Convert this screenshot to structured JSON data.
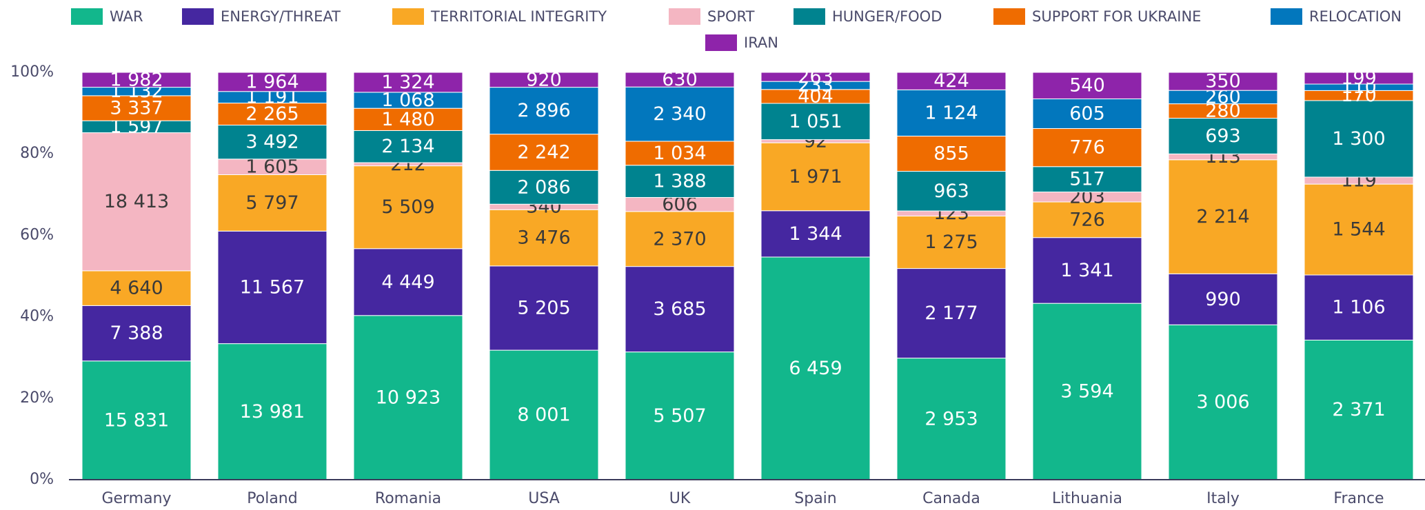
{
  "chart_data": {
    "type": "bar",
    "stacking": "percent",
    "categories": [
      "Germany",
      "Poland",
      "Romania",
      "USA",
      "UK",
      "Spain",
      "Canada",
      "Lithuania",
      "Italy",
      "France"
    ],
    "ylim": [
      0,
      100
    ],
    "yticks": [
      {
        "value": 0,
        "label": "0%"
      },
      {
        "value": 20,
        "label": "20%"
      },
      {
        "value": 40,
        "label": "40%"
      },
      {
        "value": 60,
        "label": "60%"
      },
      {
        "value": 80,
        "label": "80%"
      },
      {
        "value": 100,
        "label": "100%"
      }
    ],
    "series": [
      {
        "name": "WAR",
        "color": "#12b78c",
        "values": [
          15831,
          13981,
          10923,
          8001,
          5507,
          6459,
          2953,
          3594,
          3006,
          2371
        ],
        "value_labels": [
          "15 831",
          "13 981",
          "10 923",
          "8 001",
          "5 507",
          "6 459",
          "2 953",
          "3 594",
          "3 006",
          "2 371"
        ]
      },
      {
        "name": "ENERGY/THREAT",
        "color": "#4527a0",
        "values": [
          7388,
          11567,
          4449,
          5205,
          3685,
          1344,
          2177,
          1341,
          990,
          1106
        ],
        "value_labels": [
          "7 388",
          "11 567",
          "4 449",
          "5 205",
          "3 685",
          "1 344",
          "2 177",
          "1 341",
          "990",
          "1 106"
        ]
      },
      {
        "name": "TERRITORIAL INTEGRITY",
        "color": "#f9a825",
        "values": [
          4640,
          5797,
          5509,
          3476,
          2370,
          1971,
          1275,
          726,
          2214,
          1544
        ],
        "value_labels": [
          "4 640",
          "5 797",
          "5 509",
          "3 476",
          "2 370",
          "1 971",
          "1 275",
          "726",
          "2 214",
          "1 544"
        ]
      },
      {
        "name": "SPORT",
        "color": "#f4b6c2",
        "values": [
          18413,
          1605,
          212,
          340,
          606,
          92,
          123,
          203,
          113,
          119
        ],
        "value_labels": [
          "18 413",
          "1 605",
          "212",
          "340",
          "606",
          "92",
          "123",
          "203",
          "113",
          "119"
        ]
      },
      {
        "name": "HUNGER/FOOD",
        "color": "#00838f",
        "values": [
          1597,
          3492,
          2134,
          2086,
          1388,
          1051,
          963,
          517,
          693,
          1300
        ],
        "value_labels": [
          "1 597",
          "3 492",
          "2 134",
          "2 086",
          "1 388",
          "1 051",
          "963",
          "517",
          "693",
          "1 300"
        ]
      },
      {
        "name": "SUPPORT FOR UKRAINE",
        "color": "#ef6c00",
        "values": [
          3337,
          2265,
          1480,
          2242,
          1034,
          404,
          855,
          776,
          280,
          170
        ],
        "value_labels": [
          "3 337",
          "2 265",
          "1 480",
          "2 242",
          "1 034",
          "404",
          "855",
          "776",
          "280",
          "170"
        ]
      },
      {
        "name": "RELOCATION",
        "color": "#0277bd",
        "values": [
          1132,
          1191,
          1068,
          2896,
          2340,
          233,
          1124,
          605,
          260,
          110
        ],
        "value_labels": [
          "1 132",
          "1 191",
          "1 068",
          "2 896",
          "2 340",
          "233",
          "1 124",
          "605",
          "260",
          "110"
        ]
      },
      {
        "name": "IRAN",
        "color": "#8e24aa",
        "values": [
          1982,
          1964,
          1324,
          920,
          630,
          263,
          424,
          540,
          350,
          199
        ],
        "value_labels": [
          "1 982",
          "1 964",
          "1 324",
          "920",
          "630",
          "263",
          "424",
          "540",
          "350",
          "199"
        ]
      }
    ]
  }
}
